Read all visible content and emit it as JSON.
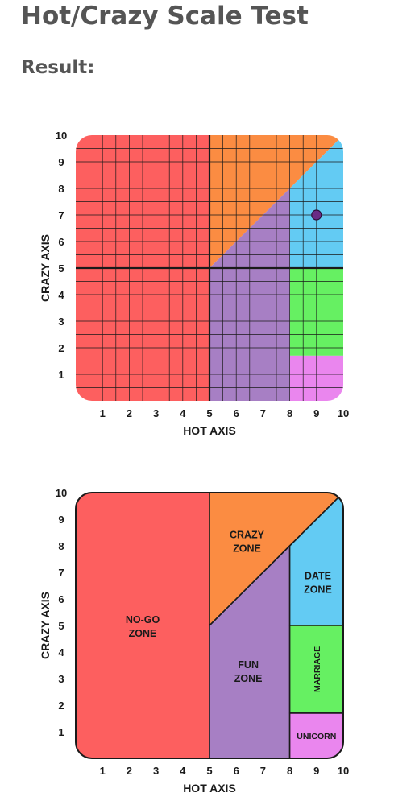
{
  "page": {
    "title": "Hot/Crazy Scale Test",
    "result_label": "Result:"
  },
  "colors": {
    "no_go": "#fd5f5f",
    "crazy": "#fb8c42",
    "fun": "#a77fc4",
    "date": "#63cbf3",
    "marriage": "#66f062",
    "unicorn": "#ea86ee",
    "grid_line": "#1a1a1a",
    "marker": "#6a2c85"
  },
  "chart_data": [
    {
      "type": "scatter",
      "title": "",
      "xlabel": "HOT AXIS",
      "ylabel": "CRAZY AXIS",
      "xlim": [
        0,
        10
      ],
      "ylim": [
        0,
        10
      ],
      "x_ticks": [
        "1",
        "2",
        "3",
        "4",
        "5",
        "6",
        "7",
        "8",
        "9",
        "10"
      ],
      "y_ticks": [
        "1",
        "2",
        "3",
        "4",
        "5",
        "6",
        "7",
        "8",
        "9",
        "10"
      ],
      "grid": true,
      "grid_step": 0.5,
      "points": [
        {
          "x": 9,
          "y": 7
        }
      ]
    },
    {
      "type": "area",
      "title": "",
      "xlabel": "HOT AXIS",
      "ylabel": "CRAZY AXIS",
      "xlim": [
        0,
        10
      ],
      "ylim": [
        0,
        10
      ],
      "x_ticks": [
        "1",
        "2",
        "3",
        "4",
        "5",
        "6",
        "7",
        "8",
        "9",
        "10"
      ],
      "y_ticks": [
        "1",
        "2",
        "3",
        "4",
        "5",
        "6",
        "7",
        "8",
        "9",
        "10"
      ],
      "grid": false,
      "zones": [
        {
          "label": [
            "NO-GO",
            "ZONE"
          ],
          "color_key": "no_go",
          "polygon": [
            [
              0,
              0
            ],
            [
              5,
              0
            ],
            [
              5,
              10
            ],
            [
              0,
              10
            ]
          ],
          "label_at": [
            2.5,
            5
          ]
        },
        {
          "label": [
            "CRAZY",
            "ZONE"
          ],
          "color_key": "crazy",
          "polygon": [
            [
              5,
              5
            ],
            [
              10,
              10
            ],
            [
              5,
              10
            ]
          ],
          "label_at": [
            6.4,
            8.2
          ]
        },
        {
          "label": [
            "FUN",
            "ZONE"
          ],
          "color_key": "fun",
          "polygon": [
            [
              5,
              0
            ],
            [
              8,
              0
            ],
            [
              8,
              8
            ],
            [
              5,
              5
            ]
          ],
          "label_at": [
            6.45,
            3.3
          ]
        },
        {
          "label": [
            "DATE",
            "ZONE"
          ],
          "color_key": "date",
          "polygon": [
            [
              8,
              5
            ],
            [
              10,
              5
            ],
            [
              10,
              10
            ],
            [
              8,
              8
            ]
          ],
          "label_at": [
            9.05,
            6.65
          ]
        },
        {
          "label": [
            "MARRIAGE"
          ],
          "color_key": "marriage",
          "polygon": [
            [
              8,
              1.7
            ],
            [
              10,
              1.7
            ],
            [
              10,
              5
            ],
            [
              8,
              5
            ]
          ],
          "label_at": [
            9.0,
            3.35
          ],
          "vertical": true
        },
        {
          "label": [
            "UNICORN"
          ],
          "color_key": "unicorn",
          "polygon": [
            [
              8,
              0
            ],
            [
              10,
              0
            ],
            [
              10,
              1.7
            ],
            [
              8,
              1.7
            ]
          ],
          "label_at": [
            9.0,
            0.85
          ]
        }
      ]
    }
  ]
}
